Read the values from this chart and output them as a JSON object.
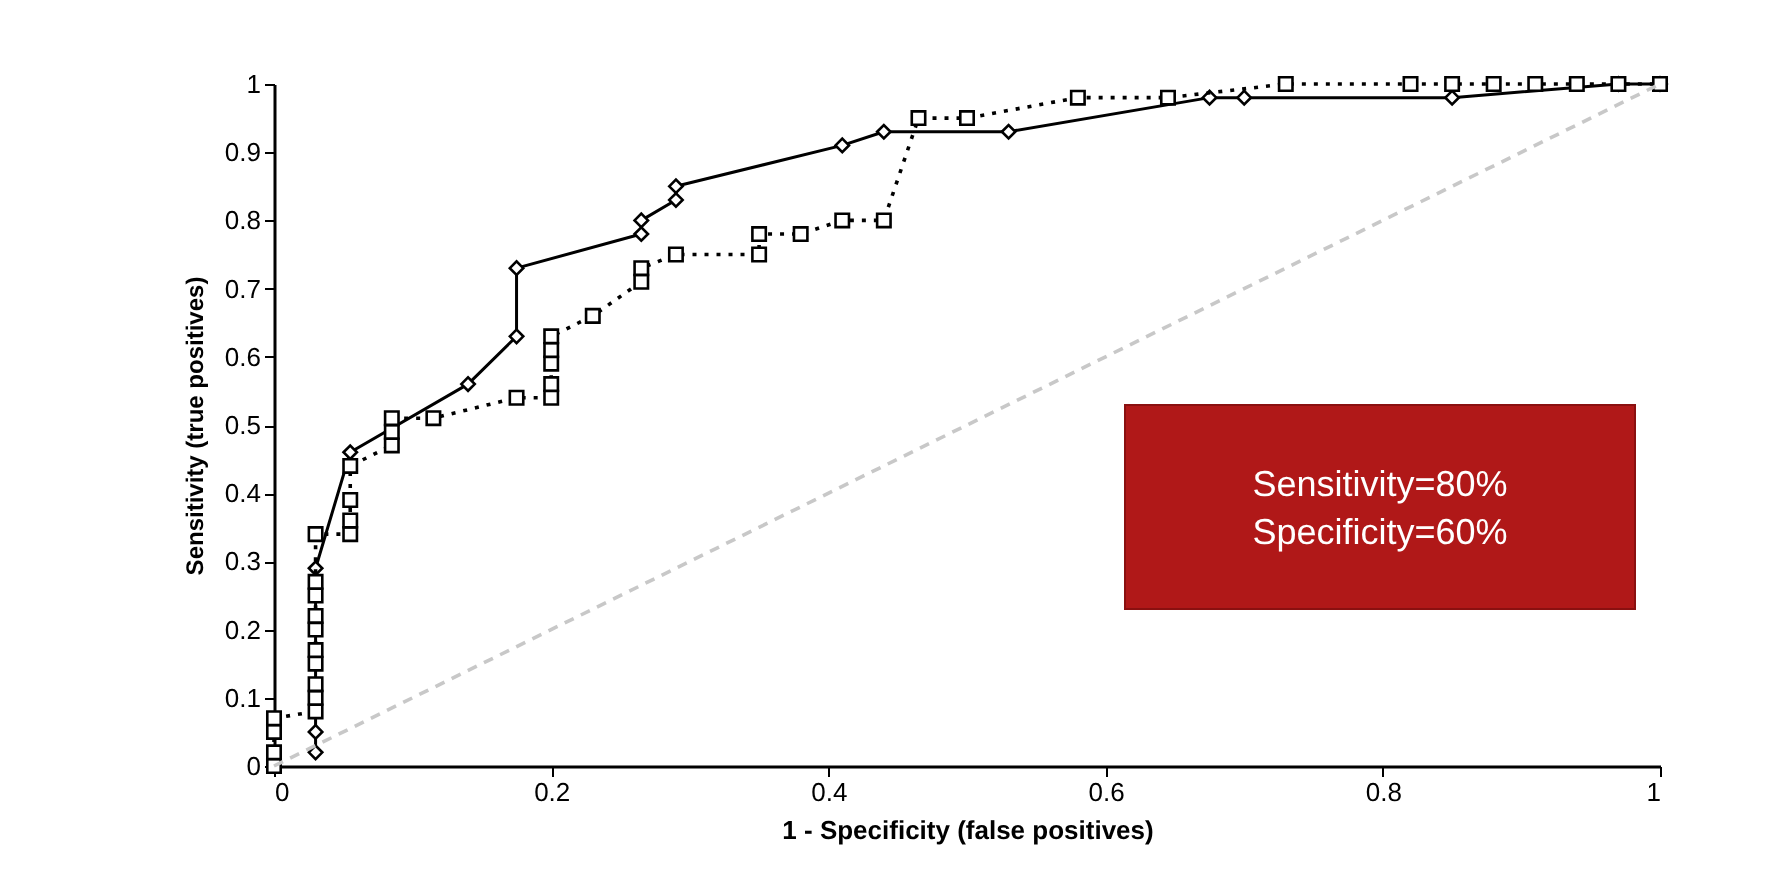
{
  "chart_data": {
    "type": "line",
    "xlabel": "1 - Specificity (false positives)",
    "ylabel": "Sensitivity (true positives)",
    "xlim": [
      0,
      1
    ],
    "ylim": [
      0,
      1
    ],
    "xticks": [
      0,
      0.2,
      0.4,
      0.6,
      0.8,
      1
    ],
    "yticks": [
      0,
      0.1,
      0.2,
      0.3,
      0.4,
      0.5,
      0.6,
      0.7,
      0.8,
      0.9,
      1
    ],
    "grid": false,
    "annotations": [
      "Sensitivity=80%",
      "Specificity=60%"
    ],
    "series": [
      {
        "color": "#000000",
        "marker": "diamond",
        "line_style": "solid",
        "x": [
          0.03,
          0.03,
          0.03,
          0.055,
          0.14,
          0.175,
          0.175,
          0.265,
          0.265,
          0.29,
          0.29,
          0.41,
          0.44,
          0.53,
          0.675,
          0.7,
          0.85,
          0.97,
          1
        ],
        "values": [
          0.02,
          0.05,
          0.29,
          0.46,
          0.56,
          0.63,
          0.73,
          0.78,
          0.8,
          0.83,
          0.85,
          0.91,
          0.93,
          0.93,
          0.98,
          0.98,
          0.98,
          1,
          1
        ]
      },
      {
        "color": "#000000",
        "marker": "square",
        "line_style": "dotted",
        "x": [
          0,
          0,
          0,
          0,
          0.03,
          0.03,
          0.03,
          0.03,
          0.03,
          0.03,
          0.03,
          0.03,
          0.03,
          0.03,
          0.055,
          0.055,
          0.055,
          0.055,
          0.085,
          0.085,
          0.085,
          0.115,
          0.175,
          0.2,
          0.2,
          0.2,
          0.2,
          0.2,
          0.23,
          0.265,
          0.265,
          0.29,
          0.35,
          0.35,
          0.38,
          0.41,
          0.44,
          0.465,
          0.5,
          0.58,
          0.645,
          0.73,
          0.82,
          0.85,
          0.88,
          0.91,
          0.94,
          0.97,
          1
        ],
        "values": [
          0,
          0.02,
          0.05,
          0.07,
          0.08,
          0.1,
          0.12,
          0.15,
          0.17,
          0.2,
          0.22,
          0.25,
          0.27,
          0.34,
          0.34,
          0.36,
          0.39,
          0.44,
          0.47,
          0.49,
          0.51,
          0.51,
          0.54,
          0.54,
          0.56,
          0.59,
          0.61,
          0.63,
          0.66,
          0.71,
          0.73,
          0.75,
          0.75,
          0.78,
          0.78,
          0.8,
          0.8,
          0.95,
          0.95,
          0.98,
          0.98,
          1,
          1,
          1,
          1,
          1,
          1,
          1,
          1
        ]
      },
      {
        "color": "#c8c8c8",
        "marker": "none",
        "line_style": "dashed",
        "x": [
          0,
          1
        ],
        "values": [
          0,
          1
        ]
      }
    ]
  }
}
